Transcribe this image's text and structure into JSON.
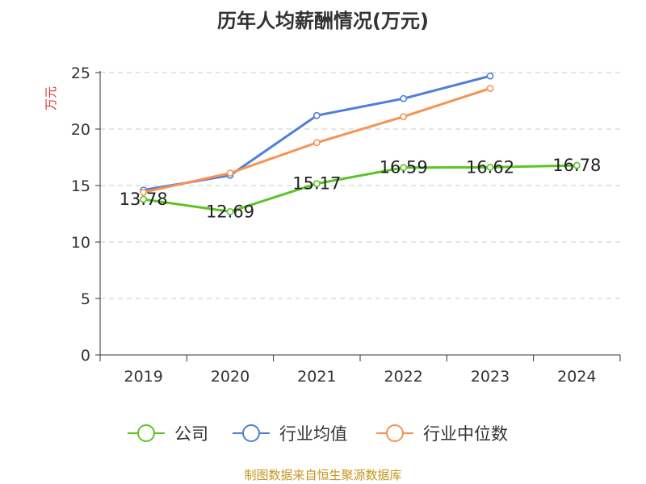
{
  "chart_data": {
    "type": "line",
    "title": "历年人均薪酬情况(万元)",
    "ylabel": "万元",
    "xlabel": "",
    "categories": [
      "2019",
      "2020",
      "2021",
      "2022",
      "2023",
      "2024"
    ],
    "ylim": [
      0,
      25
    ],
    "yticks": [
      0,
      5,
      10,
      15,
      20,
      25
    ],
    "grid": true,
    "legend_position": "bottom",
    "series": [
      {
        "name": "公司",
        "color": "#5cc425",
        "values": [
          13.78,
          12.69,
          15.17,
          16.59,
          16.62,
          16.78
        ],
        "labels": [
          "13.78",
          "12.69",
          "15.17",
          "16.59",
          "16.62",
          "16.78"
        ]
      },
      {
        "name": "行业均值",
        "color": "#4e7fd8",
        "values": [
          14.6,
          15.9,
          21.2,
          22.7,
          24.7,
          null
        ]
      },
      {
        "name": "行业中位数",
        "color": "#f59254",
        "values": [
          14.4,
          16.1,
          18.8,
          21.1,
          23.6,
          null
        ]
      }
    ]
  },
  "footer": {
    "source": "制图数据来自恒生聚源数据库"
  }
}
